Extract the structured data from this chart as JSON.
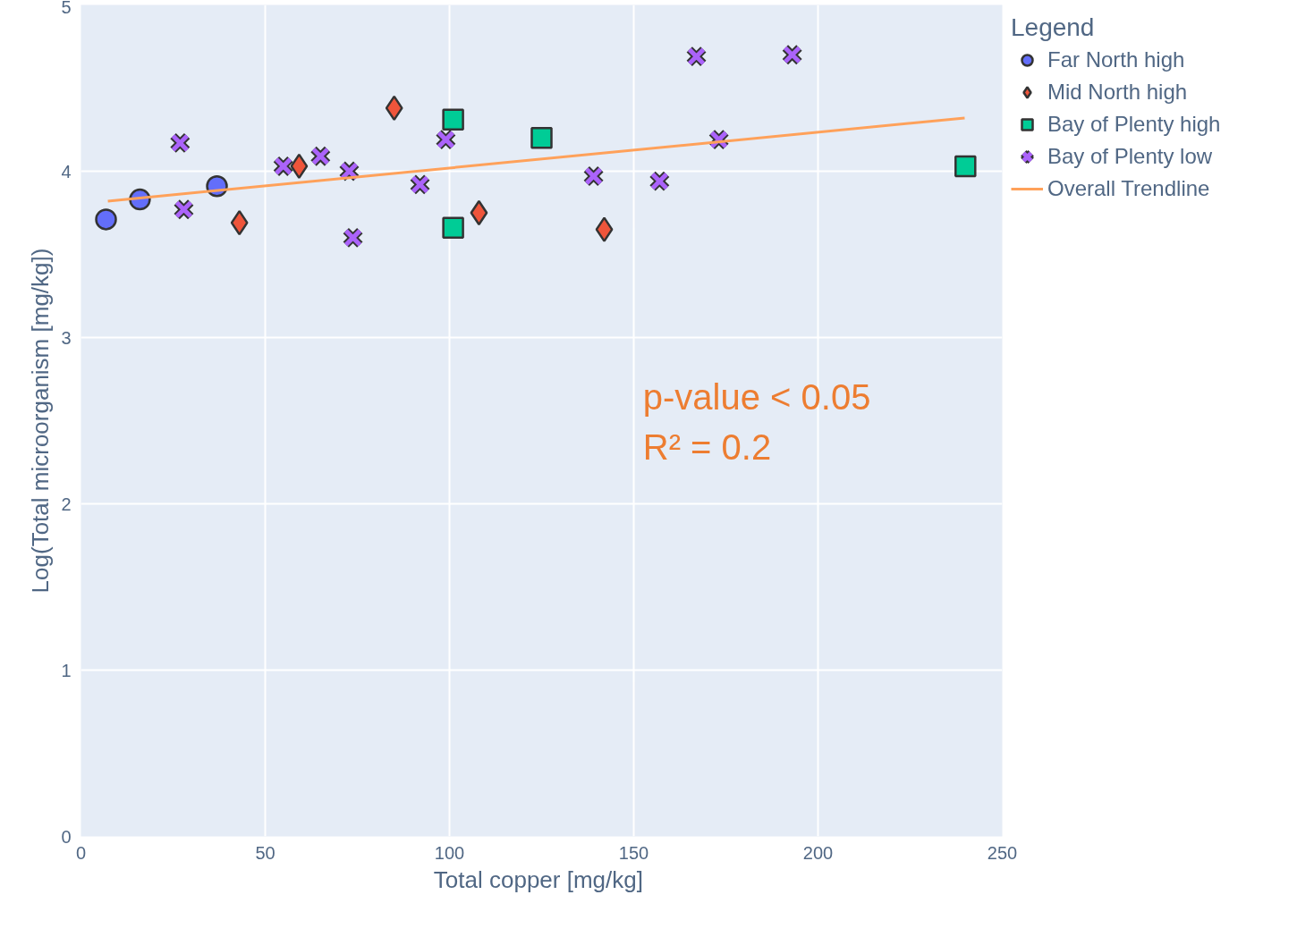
{
  "chart_data": {
    "type": "scatter",
    "xlabel": "Total copper  [mg/kg]",
    "ylabel": "Log(Total microorganism [mg/kg])",
    "legend_title": "Legend",
    "legend": "top right",
    "grid": true,
    "xlim": [
      0,
      250
    ],
    "ylim": [
      0,
      5
    ],
    "xticks": [
      0,
      50,
      100,
      150,
      200,
      250
    ],
    "yticks": [
      0,
      1,
      2,
      3,
      4,
      5
    ],
    "annotations": [
      "p-value < 0.05",
      "R² = 0.2"
    ],
    "series": [
      {
        "name": "Far North high",
        "color": "#636efa",
        "marker": "circle",
        "x": [
          6.8,
          16.0,
          36.9
        ],
        "values": [
          3.71,
          3.83,
          3.91
        ]
      },
      {
        "name": "Mid North high",
        "color": "#ef553b",
        "marker": "diamond",
        "x": [
          43.0,
          59.2,
          85.0,
          108.0,
          142.0
        ],
        "values": [
          3.69,
          4.03,
          4.38,
          3.75,
          3.65
        ]
      },
      {
        "name": "Bay of Plenty high",
        "color": "#00cc96",
        "marker": "square",
        "x": [
          101.0,
          101.0,
          125.0,
          240.0
        ],
        "values": [
          4.31,
          3.66,
          4.2,
          4.03
        ]
      },
      {
        "name": "Bay of Plenty low",
        "color": "#ab63fa",
        "marker": "cross",
        "x": [
          26.9,
          27.9,
          54.9,
          65.0,
          72.8,
          73.8,
          92.0,
          99.0,
          139.1,
          157.0,
          167.0,
          173.1,
          193.0
        ],
        "values": [
          4.17,
          3.77,
          4.03,
          4.09,
          4.0,
          3.6,
          3.92,
          4.19,
          3.97,
          3.94,
          4.69,
          4.19,
          4.7
        ]
      },
      {
        "name": "Overall Trendline",
        "type": "line",
        "color": "#ffa15a",
        "marker": "none",
        "x": [
          7.3,
          239.8
        ],
        "values": [
          3.82,
          4.32
        ]
      }
    ]
  }
}
